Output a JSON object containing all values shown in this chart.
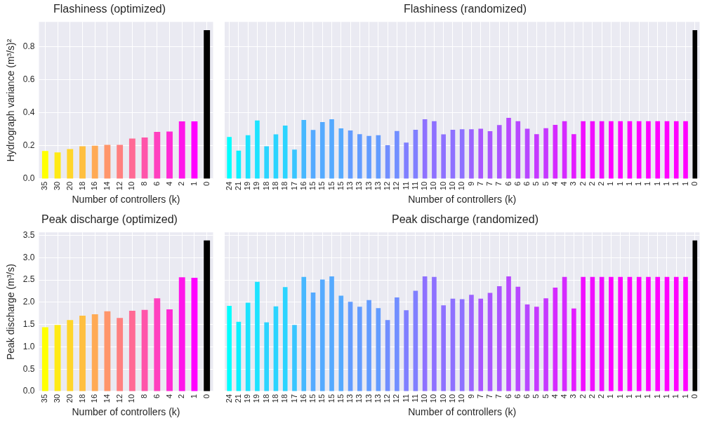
{
  "chart_data": [
    {
      "type": "bar",
      "title": "Flashiness (optimized)",
      "xlabel": "Number of controllers (k)",
      "ylabel": "Hydrograph variance (m³/s)²",
      "grid": true,
      "categories": [
        "35",
        "30",
        "20",
        "18",
        "16",
        "14",
        "12",
        "10",
        "8",
        "6",
        "4",
        "2",
        "1",
        "0"
      ],
      "values": [
        0.169,
        0.16,
        0.18,
        0.197,
        0.2,
        0.206,
        0.206,
        0.244,
        0.25,
        0.284,
        0.286,
        0.348,
        0.348,
        0.9
      ],
      "colors": [
        "#ffff00",
        "#ffea15",
        "#ffd52a",
        "#ffbf40",
        "#ffaa55",
        "#ff956a",
        "#ff8080",
        "#ff6a95",
        "#ff55aa",
        "#ff40bf",
        "#ff2ad5",
        "#ff15ea",
        "#ff00ff",
        "#000000"
      ],
      "ylim": [
        0,
        0.95
      ],
      "yticks": [
        {
          "value": 0,
          "label": "0.0"
        },
        {
          "value": 0.2,
          "label": "0.2"
        },
        {
          "value": 0.4,
          "label": "0.4"
        },
        {
          "value": 0.6,
          "label": "0.6"
        },
        {
          "value": 0.8,
          "label": "0.8"
        }
      ]
    },
    {
      "type": "bar",
      "title": "Flashiness (randomized)",
      "xlabel": "Number of controllers (k)",
      "grid": true,
      "tick_labels": "x",
      "categories": [
        "24",
        "21",
        "19",
        "19",
        "18",
        "18",
        "18",
        "17",
        "16",
        "15",
        "15",
        "15",
        "15",
        "13",
        "13",
        "13",
        "13",
        "12",
        "12",
        "11",
        "11",
        "10",
        "10",
        "10",
        "10",
        "10",
        "9",
        "7",
        "7",
        "7",
        "6",
        "6",
        "6",
        "5",
        "5",
        "4",
        "4",
        "3",
        "2",
        "2",
        "2",
        "1",
        "1",
        "1",
        "1",
        "1",
        "1",
        "1",
        "1",
        "1",
        "0"
      ],
      "values": [
        0.254,
        0.171,
        0.264,
        0.353,
        0.197,
        0.269,
        0.323,
        0.177,
        0.356,
        0.296,
        0.344,
        0.361,
        0.306,
        0.293,
        0.271,
        0.26,
        0.264,
        0.204,
        0.29,
        0.22,
        0.297,
        0.361,
        0.349,
        0.269,
        0.297,
        0.3,
        0.3,
        0.303,
        0.289,
        0.326,
        0.369,
        0.349,
        0.303,
        0.27,
        0.307,
        0.327,
        0.349,
        0.27,
        0.349,
        0.349,
        0.349,
        0.349,
        0.349,
        0.349,
        0.349,
        0.349,
        0.349,
        0.349,
        0.349,
        0.349,
        0.9
      ],
      "colors": [
        "#00ffff",
        "#0ef1ff",
        "#1ce3ff",
        "#1ce3ff",
        "#2bd4ff",
        "#2bd4ff",
        "#2bd4ff",
        "#39c6ff",
        "#47b8ff",
        "#55aaff",
        "#55aaff",
        "#55aaff",
        "#55aaff",
        "#639cff",
        "#639cff",
        "#639cff",
        "#639cff",
        "#718eff",
        "#718eff",
        "#807fff",
        "#807fff",
        "#8e71ff",
        "#8e71ff",
        "#8e71ff",
        "#8e71ff",
        "#8e71ff",
        "#9c63ff",
        "#aa55ff",
        "#aa55ff",
        "#aa55ff",
        "#b847ff",
        "#b847ff",
        "#b847ff",
        "#c639ff",
        "#c639ff",
        "#d52aff",
        "#d52aff",
        "#e31cff",
        "#f10eff",
        "#f10eff",
        "#f10eff",
        "#ff00ff",
        "#ff00ff",
        "#ff00ff",
        "#ff00ff",
        "#ff00ff",
        "#ff00ff",
        "#ff00ff",
        "#ff00ff",
        "#ff00ff",
        "#000000"
      ],
      "ylim": [
        0,
        0.95
      ],
      "yticks": [
        {
          "value": 0,
          "label": null
        },
        {
          "value": 0.2,
          "label": null
        },
        {
          "value": 0.4,
          "label": null
        },
        {
          "value": 0.6,
          "label": null
        },
        {
          "value": 0.8,
          "label": null
        }
      ]
    },
    {
      "type": "bar",
      "title": "Peak discharge (optimized)",
      "xlabel": "Number of controllers (k)",
      "ylabel": "Peak discharge (m³/s)",
      "grid": true,
      "categories": [
        "35",
        "30",
        "20",
        "18",
        "16",
        "14",
        "12",
        "10",
        "8",
        "6",
        "4",
        "2",
        "1",
        "0"
      ],
      "values": [
        1.44,
        1.49,
        1.6,
        1.7,
        1.73,
        1.8,
        1.65,
        1.81,
        1.83,
        2.09,
        1.84,
        2.56,
        2.55,
        3.39
      ],
      "colors": [
        "#ffff00",
        "#ffea15",
        "#ffd52a",
        "#ffbf40",
        "#ffaa55",
        "#ff956a",
        "#ff8080",
        "#ff6a95",
        "#ff55aa",
        "#ff40bf",
        "#ff2ad5",
        "#ff15ea",
        "#ff00ff",
        "#000000"
      ],
      "ylim": [
        0,
        3.57
      ],
      "yticks": [
        {
          "value": 0,
          "label": "0.0"
        },
        {
          "value": 0.5,
          "label": "0.5"
        },
        {
          "value": 1,
          "label": "1.0"
        },
        {
          "value": 1.5,
          "label": "1.5"
        },
        {
          "value": 2,
          "label": "2.0"
        },
        {
          "value": 2.5,
          "label": "2.5"
        },
        {
          "value": 3,
          "label": "3.0"
        },
        {
          "value": 3.5,
          "label": "3.5"
        }
      ]
    },
    {
      "type": "bar",
      "title": "Peak discharge (randomized)",
      "xlabel": "Number of controllers (k)",
      "grid": true,
      "tick_labels": "x",
      "categories": [
        "24",
        "21",
        "19",
        "19",
        "18",
        "18",
        "18",
        "17",
        "16",
        "15",
        "15",
        "15",
        "15",
        "13",
        "13",
        "13",
        "13",
        "12",
        "12",
        "11",
        "11",
        "10",
        "10",
        "10",
        "10",
        "10",
        "9",
        "7",
        "7",
        "7",
        "6",
        "6",
        "6",
        "5",
        "5",
        "4",
        "4",
        "3",
        "2",
        "2",
        "2",
        "1",
        "1",
        "1",
        "1",
        "1",
        "1",
        "1",
        "1",
        "1",
        "0"
      ],
      "values": [
        1.92,
        1.56,
        1.99,
        2.46,
        1.55,
        1.91,
        2.34,
        1.49,
        2.57,
        2.22,
        2.51,
        2.58,
        2.15,
        2.01,
        1.9,
        2.05,
        1.87,
        1.6,
        2.11,
        1.82,
        2.26,
        2.58,
        2.57,
        1.93,
        2.08,
        2.07,
        2.17,
        2.08,
        2.21,
        2.36,
        2.58,
        2.35,
        1.95,
        1.9,
        2.09,
        2.33,
        2.57,
        1.86,
        2.57,
        2.57,
        2.57,
        2.57,
        2.57,
        2.57,
        2.57,
        2.57,
        2.57,
        2.57,
        2.57,
        2.57,
        3.39
      ],
      "colors": [
        "#00ffff",
        "#0ef1ff",
        "#1ce3ff",
        "#1ce3ff",
        "#2bd4ff",
        "#2bd4ff",
        "#2bd4ff",
        "#39c6ff",
        "#47b8ff",
        "#55aaff",
        "#55aaff",
        "#55aaff",
        "#55aaff",
        "#639cff",
        "#639cff",
        "#639cff",
        "#639cff",
        "#718eff",
        "#718eff",
        "#807fff",
        "#807fff",
        "#8e71ff",
        "#8e71ff",
        "#8e71ff",
        "#8e71ff",
        "#8e71ff",
        "#9c63ff",
        "#aa55ff",
        "#aa55ff",
        "#aa55ff",
        "#b847ff",
        "#b847ff",
        "#b847ff",
        "#c639ff",
        "#c639ff",
        "#d52aff",
        "#d52aff",
        "#e31cff",
        "#f10eff",
        "#f10eff",
        "#f10eff",
        "#ff00ff",
        "#ff00ff",
        "#ff00ff",
        "#ff00ff",
        "#ff00ff",
        "#ff00ff",
        "#ff00ff",
        "#ff00ff",
        "#ff00ff",
        "#000000"
      ],
      "ylim": [
        0,
        3.57
      ],
      "yticks": [
        {
          "value": 0,
          "label": null
        },
        {
          "value": 0.5,
          "label": null
        },
        {
          "value": 1,
          "label": null
        },
        {
          "value": 1.5,
          "label": null
        },
        {
          "value": 2,
          "label": null
        },
        {
          "value": 2.5,
          "label": null
        },
        {
          "value": 3,
          "label": null
        },
        {
          "value": 3.5,
          "label": null
        }
      ]
    }
  ]
}
